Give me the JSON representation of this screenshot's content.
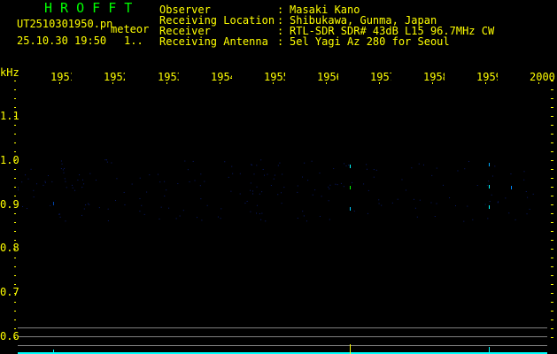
{
  "header": {
    "title": "H R O F F T",
    "filename": "UT2510301950.pn",
    "mode": "meteor",
    "datetime": "25.10.30 19:50",
    "page": "1..",
    "info": [
      {
        "label": "Observer",
        "value": "Masaki Kano"
      },
      {
        "label": "Receiving Location",
        "value": "Shibukawa, Gunma, Japan"
      },
      {
        "label": "Receiver",
        "value": "RTL-SDR SDR# 43dB L15 96.7MHz CW"
      },
      {
        "label": "Receiving Antenna",
        "value": "5el Yagi Az 280 for Seoul"
      }
    ]
  },
  "axis": {
    "y_unit": "kHz",
    "y_ticks": [
      "1.1",
      "1.0",
      "0.9",
      "0.8",
      "0.7",
      "0.6"
    ],
    "x_ticks": [
      "1951",
      "1952",
      "1953",
      "1954",
      "1955",
      "1956",
      "1957",
      "1958",
      "1959",
      "2000"
    ]
  },
  "colors": {
    "text": "#ffff00",
    "title": "#00ff00",
    "signal": "#00ffff",
    "grid": "#808080"
  }
}
